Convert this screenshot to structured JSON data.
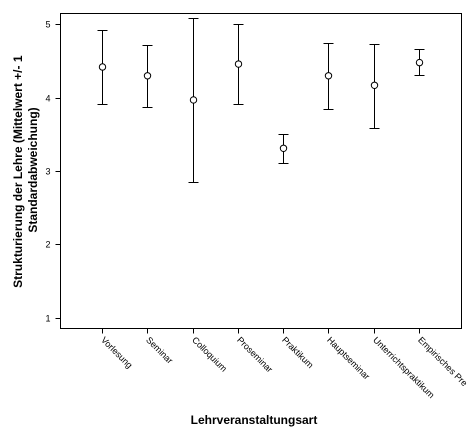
{
  "chart_data": {
    "type": "errorbar",
    "xlabel": "Lehrveranstaltungsart",
    "ylabel_lines": [
      "Strukturierung der Lehre (Mittelwert +/- 1",
      "Standardabweichung)"
    ],
    "ylim": [
      0.85,
      5.15
    ],
    "yticks": [
      1,
      2,
      3,
      4,
      5
    ],
    "grid": false,
    "categories": [
      "Vorlesung",
      "Seminar",
      "Colloquium",
      "Proseminar",
      "Praktikum",
      "Hauptseminar",
      "Unterrichtspraktikum",
      "Empirisches Pre"
    ],
    "series": [
      {
        "mean": [
          4.42,
          4.3,
          3.97,
          4.46,
          3.31,
          4.3,
          4.17,
          4.48
        ],
        "lower": [
          3.91,
          3.88,
          2.85,
          3.91,
          3.11,
          3.85,
          3.59,
          4.31
        ],
        "upper": [
          4.93,
          4.72,
          5.09,
          5.0,
          3.51,
          4.75,
          4.74,
          4.66
        ]
      }
    ]
  }
}
